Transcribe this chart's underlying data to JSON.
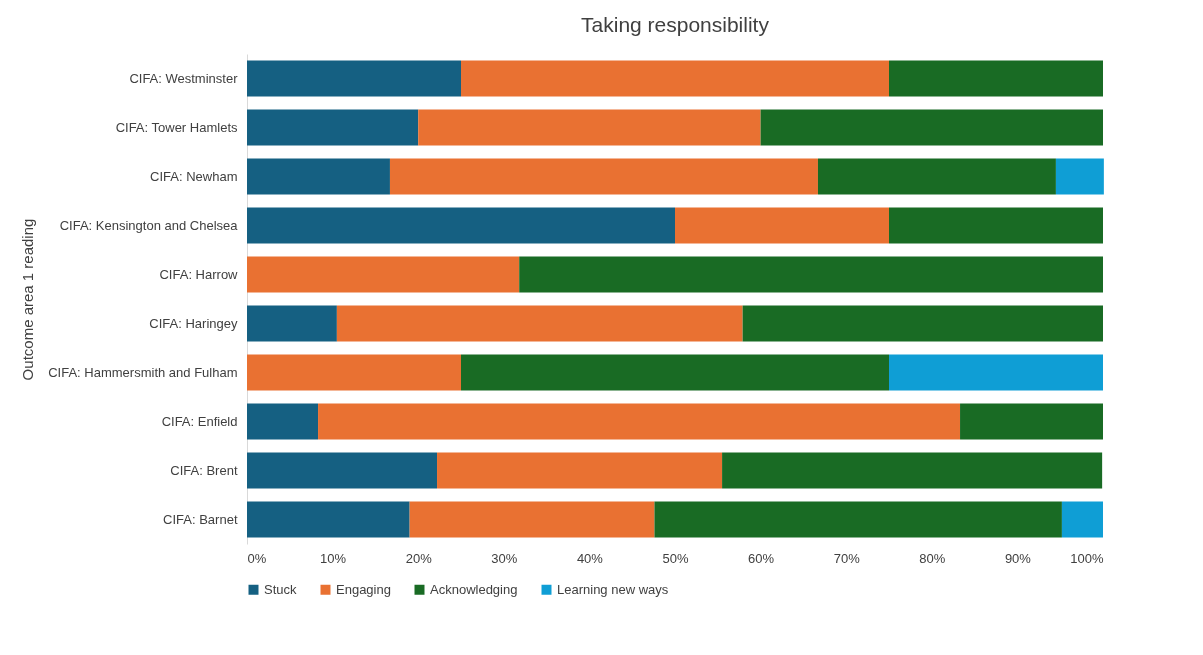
{
  "chart_data": {
    "type": "bar",
    "orientation": "horizontal",
    "stacked": true,
    "title": "Taking responsibility",
    "ylabel": "Outcome area 1 reading",
    "categories": [
      "CIFA: Westminster",
      "CIFA: Tower Hamlets",
      "CIFA: Newham",
      "CIFA: Kensington and Chelsea",
      "CIFA: Harrow",
      "CIFA: Haringey",
      "CIFA: Hammersmith and Fulham",
      "CIFA: Enfield",
      "CIFA: Brent",
      "CIFA: Barnet"
    ],
    "series": [
      {
        "name": "Stuck",
        "color": "#156082",
        "values": [
          25,
          20,
          16.7,
          50,
          0,
          10.5,
          0,
          8.3,
          22.2,
          19.0
        ]
      },
      {
        "name": "Engaging",
        "color": "#e97132",
        "values": [
          50,
          40,
          50,
          25,
          31.8,
          47.4,
          25,
          75,
          33.3,
          28.6
        ]
      },
      {
        "name": "Acknowledging",
        "color": "#196b24",
        "values": [
          25,
          40,
          27.8,
          25,
          68.2,
          42.1,
          50,
          16.7,
          44.4,
          47.6
        ]
      },
      {
        "name": "Learning new ways",
        "color": "#0f9ed5",
        "values": [
          0,
          0,
          5.6,
          0,
          0,
          0,
          25,
          0,
          0,
          4.8
        ]
      }
    ],
    "xlim": [
      0,
      100
    ],
    "xticks": [
      {
        "value": 0,
        "label": "0%"
      },
      {
        "value": 10,
        "label": "10%"
      },
      {
        "value": 20,
        "label": "20%"
      },
      {
        "value": 30,
        "label": "30%"
      },
      {
        "value": 40,
        "label": "40%"
      },
      {
        "value": 50,
        "label": "50%"
      },
      {
        "value": 60,
        "label": "60%"
      },
      {
        "value": 70,
        "label": "70%"
      },
      {
        "value": 80,
        "label": "80%"
      },
      {
        "value": 90,
        "label": "90%"
      },
      {
        "value": 100,
        "label": "100%"
      }
    ],
    "grid": false,
    "legend": "bottom"
  }
}
